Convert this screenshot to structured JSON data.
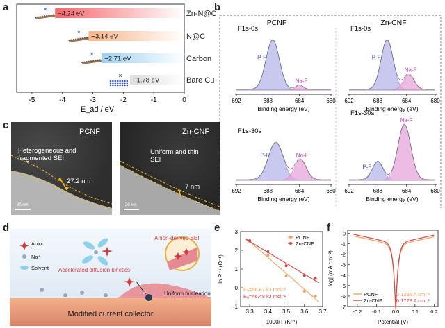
{
  "panels": {
    "a": "a",
    "b": "b",
    "c": "c",
    "d": "d",
    "e": "e",
    "f": "f"
  },
  "colors": {
    "pcnf": "#f0a25c",
    "zncnf": "#d8434a",
    "pf_fill": "#b8b6ea",
    "naf_fill": "#e6a6dc",
    "pf_text": "#5a4fc2",
    "naf_text": "#c43fb6"
  },
  "chart_data": [
    {
      "type": "bar",
      "panel": "a",
      "categories": [
        "Zn-N@C",
        "N@C",
        "Carbon",
        "Bare Cu"
      ],
      "values": [
        -4.24,
        -3.14,
        -2.71,
        -1.78
      ],
      "value_labels": [
        "−4.24 eV",
        "−3.14 eV",
        "−2.71 eV",
        "−1.78 eV"
      ],
      "bar_colors": [
        "#f4676c",
        "#f7b58a",
        "#9fd1f1",
        "#dcdcdc"
      ],
      "xlabel": "E_ad / eV",
      "xlim": [
        -5.5,
        0
      ],
      "xticks": [
        "-5",
        "-4",
        "-3",
        "-2",
        "-1",
        "0"
      ]
    },
    {
      "type": "line",
      "panel": "b",
      "groups": [
        {
          "title": "PCNF"
        },
        {
          "title": "Zn-CNF"
        }
      ],
      "spectra": [
        {
          "group": "PCNF",
          "label": "F1s-0s",
          "peaks": {
            "P-F": {
              "center": 687.4,
              "height": 1.0,
              "width": 0.85
            },
            "Na-F": {
              "center": 684.0,
              "height": 0.09,
              "width": 0.5
            }
          }
        },
        {
          "group": "Zn-CNF",
          "label": "F1s-0s",
          "peaks": {
            "P-F": {
              "center": 686.7,
              "height": 1.0,
              "width": 0.85
            },
            "Na-F": {
              "center": 683.7,
              "height": 0.31,
              "width": 0.75
            }
          }
        },
        {
          "group": "PCNF",
          "label": "F1s-30s",
          "peaks": {
            "P-F": {
              "center": 687.0,
              "height": 1.0,
              "width": 0.95
            },
            "Na-F": {
              "center": 683.9,
              "height": 0.55,
              "width": 0.75
            }
          }
        },
        {
          "group": "Zn-CNF",
          "label": "F1s-30s",
          "peaks": {
            "P-F": {
              "center": 688.0,
              "height": 0.33,
              "width": 0.75
            },
            "Na-F": {
              "center": 684.3,
              "height": 1.0,
              "width": 0.9
            }
          }
        }
      ],
      "peak_labels": {
        "pf": "P-F",
        "naf": "Na-F"
      },
      "xticks": [
        "692",
        "688",
        "684",
        "680"
      ],
      "xlim": [
        692,
        680
      ],
      "xlabel": "Binding energy (eV)"
    },
    {
      "type": "scatter",
      "panel": "e",
      "series": [
        {
          "name": "PCNF",
          "x": [
            3.3,
            3.4,
            3.5,
            3.6,
            3.66
          ],
          "y": [
            2.48,
            1.72,
            0.63,
            -0.18,
            -0.45
          ]
        },
        {
          "name": "Zn-CNF",
          "x": [
            3.3,
            3.4,
            3.5,
            3.6,
            3.66
          ],
          "y": [
            2.52,
            1.92,
            1.18,
            0.66,
            0.5
          ]
        }
      ],
      "annotations": [
        "Eₐ=66.87 kJ mol⁻¹",
        "Eₐ=46.48 kJ mol⁻¹"
      ],
      "xlabel": "1000/T (K⁻¹)",
      "ylabel": "ln R⁻¹ (Ω⁻¹)",
      "xlim": [
        3.25,
        3.7
      ],
      "ylim": [
        -1,
        3
      ],
      "xticks": [
        "3.3",
        "3.4",
        "3.5",
        "3.6",
        "3.7"
      ],
      "yticks": [
        "-1",
        "0",
        "1",
        "2",
        "3"
      ]
    },
    {
      "type": "line",
      "panel": "f",
      "series": [
        {
          "name": "PCNF",
          "i0": 0.1295,
          "label": "0.1295 A cm⁻²"
        },
        {
          "name": "Zn-CNF",
          "i0": 0.1778,
          "label": "0.1778 A cm⁻²"
        }
      ],
      "xlabel": "Potential (V)",
      "ylabel": "log| (mA cm⁻²)",
      "xlim": [
        -0.25,
        0.22
      ],
      "ylim": [
        -7,
        0.3
      ],
      "xticks": [
        "-0.2",
        "-0.1",
        "0.0",
        "0.1",
        "0.2"
      ],
      "yticks": [
        "0",
        "-1",
        "-2",
        "-3",
        "-4",
        "-5",
        "-6",
        "-7"
      ]
    }
  ],
  "c_panel": {
    "left": {
      "title": "PCNF",
      "note": "Heterogeneous and fragmented SEI",
      "thickness": "27.2 nm",
      "scale": "20 nm"
    },
    "right": {
      "title": "Zn-CNF",
      "note": "Uniform and thin SEI",
      "thickness": "7 nm",
      "scale": "20 nm"
    }
  },
  "d_panel": {
    "anion": "Anion",
    "na": "Na⁺",
    "solvent": "Solvent",
    "sei": "Anion-derived SEI",
    "kinetics": "Accelerated diffusion kinetics",
    "nucleation": "Uniform nucleation",
    "electron": "e⁻",
    "collector": "Modified current collector"
  }
}
